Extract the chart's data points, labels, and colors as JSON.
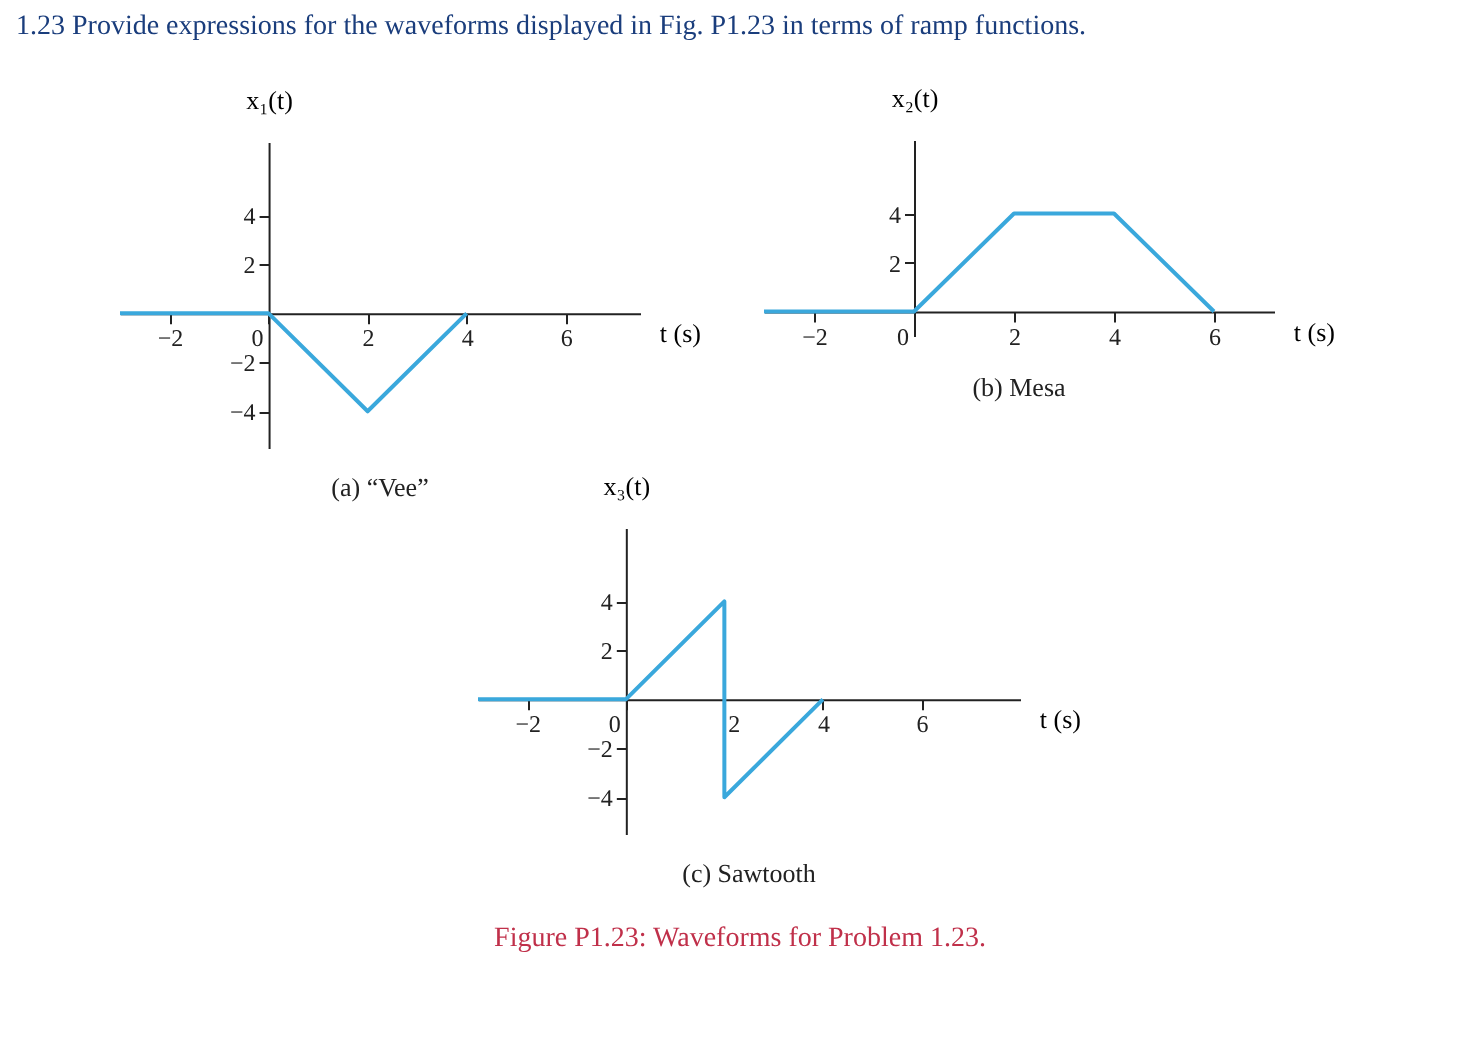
{
  "chart_data": [
    {
      "type": "line",
      "title": "(a) “Vee”",
      "xlabel": "t (s)",
      "ylabel": "x₁(t)",
      "x": [
        -3,
        0,
        2,
        4
      ],
      "values": [
        0,
        0,
        -4,
        0
      ],
      "color": "#3aa8dc",
      "xlim": [
        -3,
        7.5
      ],
      "ylim": [
        -5.5,
        7
      ],
      "xticks": [
        -2,
        0,
        2,
        4,
        6
      ],
      "yticks": [
        -4,
        -2,
        2,
        4
      ],
      "grid": false,
      "annotations": [
        "1.23  Provide expressions for the waveforms displayed in Fig. P1.23 in terms of ramp functions."
      ]
    },
    {
      "type": "line",
      "title": "(b) Mesa",
      "xlabel": "t (s)",
      "ylabel": "x₂(t)",
      "x": [
        -3,
        0,
        2,
        4,
        6
      ],
      "values": [
        0,
        0,
        4,
        4,
        0
      ],
      "color": "#3aa8dc",
      "xlim": [
        -3,
        7.2
      ],
      "ylim": [
        -1,
        7
      ],
      "xticks": [
        -2,
        0,
        2,
        4,
        6
      ],
      "yticks": [
        2,
        4
      ],
      "grid": false
    },
    {
      "type": "line",
      "title": "(c) Sawtooth",
      "xlabel": "t (s)",
      "ylabel": "x₃(t)",
      "x": [
        -3,
        0,
        2,
        2,
        4
      ],
      "values": [
        0,
        0,
        4,
        -4,
        0
      ],
      "color": "#3aa8dc",
      "xlim": [
        -3,
        8
      ],
      "ylim": [
        -5.5,
        7
      ],
      "xticks": [
        -2,
        0,
        2,
        4,
        6
      ],
      "yticks": [
        -4,
        -2,
        2,
        4
      ],
      "grid": false,
      "annotations": [
        "Figure P1.23: Waveforms for Problem 1.23."
      ]
    }
  ]
}
